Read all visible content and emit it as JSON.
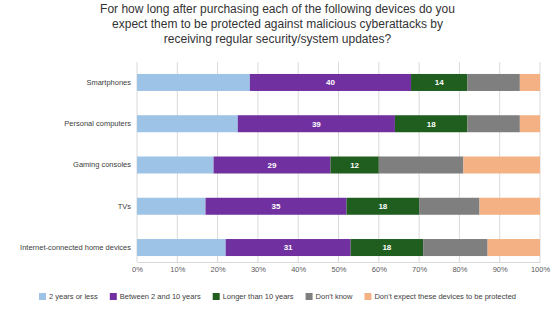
{
  "chart_data": {
    "type": "bar",
    "orientation": "horizontal",
    "stacked": true,
    "grid": true,
    "legend": "bottom",
    "title": "For how long after purchasing each of the following devices do you\nexpect them to be protected against malicious cyberattacks by\nreceiving regular security/system updates?",
    "categories": [
      "Smartphones",
      "Personal computers",
      "Gaming consoles",
      "TVs",
      "Internet-connected home devices"
    ],
    "series": [
      {
        "name": "2 years or less",
        "color": "#9dc3e6",
        "data_labels": false,
        "values": [
          28,
          25,
          19,
          17,
          22
        ]
      },
      {
        "name": "Between 2 and 10 years",
        "color": "#7030a0",
        "data_labels": true,
        "values": [
          40,
          39,
          29,
          35,
          31
        ]
      },
      {
        "name": "Longer than 10 years",
        "color": "#1f5e1f",
        "data_labels": true,
        "values": [
          14,
          18,
          12,
          18,
          18
        ]
      },
      {
        "name": "Don't know",
        "color": "#7f7f7f",
        "data_labels": false,
        "values": [
          13,
          13,
          21,
          15,
          16
        ]
      },
      {
        "name": "Don't expect these devices to be protected",
        "color": "#f4b183",
        "data_labels": false,
        "values": [
          5,
          5,
          19,
          15,
          13
        ]
      }
    ],
    "xlim": [
      0,
      100
    ],
    "xticks": [
      {
        "value": 0,
        "label": "0%"
      },
      {
        "value": 10,
        "label": "10%"
      },
      {
        "value": 20,
        "label": "20%"
      },
      {
        "value": 30,
        "label": "30%"
      },
      {
        "value": 40,
        "label": "40%"
      },
      {
        "value": 50,
        "label": "50%"
      },
      {
        "value": 60,
        "label": "60%"
      },
      {
        "value": 70,
        "label": "70%"
      },
      {
        "value": 80,
        "label": "80%"
      },
      {
        "value": 90,
        "label": "90%"
      },
      {
        "value": 100,
        "label": "100%"
      }
    ]
  }
}
